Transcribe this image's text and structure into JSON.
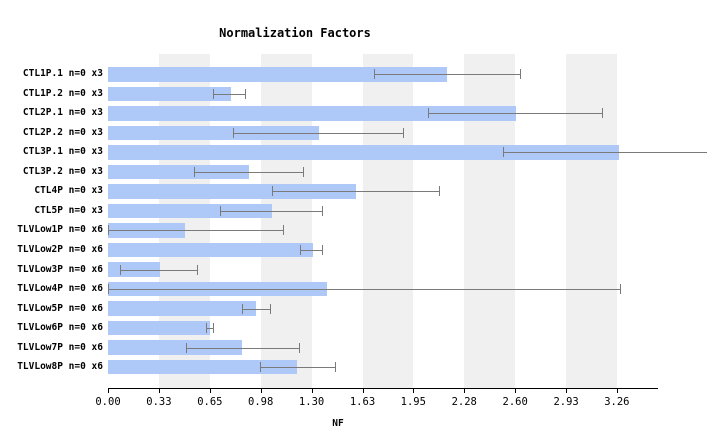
{
  "chart_data": {
    "type": "bar",
    "orientation": "horizontal",
    "title": "Normalization Factors",
    "xlabel": "NF",
    "xlim": [
      0,
      3.52
    ],
    "grid": "alternating-vertical-bands",
    "legend": "none",
    "categories": [
      "CTL1P.1 n=0 x3",
      "CTL1P.2 n=0 x3",
      "CTL2P.1 n=0 x3",
      "CTL2P.2 n=0 x3",
      "CTL3P.1 n=0 x3",
      "CTL3P.2 n=0 x3",
      "CTL4P n=0 x3",
      "CTL5P n=0 x3",
      "TLVLow1P n=0 x6",
      "TLVLow2P n=0 x6",
      "TLVLow3P n=0 x6",
      "TLVLow4P n=0 x6",
      "TLVLow5P n=0 x6",
      "TLVLow6P n=0 x6",
      "TLVLow7P n=0 x6",
      "TLVLow8P n=0 x6"
    ],
    "values": [
      2.17,
      0.79,
      2.61,
      1.35,
      3.27,
      0.9,
      1.59,
      1.05,
      0.49,
      1.31,
      0.33,
      1.4,
      0.95,
      0.65,
      0.86,
      1.21
    ],
    "error_low": [
      1.7,
      0.67,
      2.05,
      0.8,
      2.53,
      0.55,
      1.05,
      0.72,
      0.0,
      1.23,
      0.08,
      0.0,
      0.86,
      0.63,
      0.5,
      0.97
    ],
    "error_high": [
      2.64,
      0.88,
      3.16,
      1.89,
      3.84,
      1.25,
      2.12,
      1.37,
      1.12,
      1.37,
      0.57,
      3.28,
      1.04,
      0.67,
      1.22,
      1.45
    ],
    "xticks": [
      "0.00",
      "0.33",
      "0.65",
      "0.98",
      "1.30",
      "1.63",
      "1.95",
      "2.28",
      "2.60",
      "2.93",
      "3.26"
    ],
    "xtick_values": [
      0,
      0.326,
      0.652,
      0.977,
      1.303,
      1.629,
      1.954,
      2.28,
      2.606,
      2.932,
      3.257
    ]
  },
  "colors": {
    "background": "#ffffff",
    "bar_fill": "#aec9f7",
    "band": "#f0f0f0",
    "error_bar": "#7a7a7a",
    "axis": "#000000",
    "text": "#000000"
  }
}
